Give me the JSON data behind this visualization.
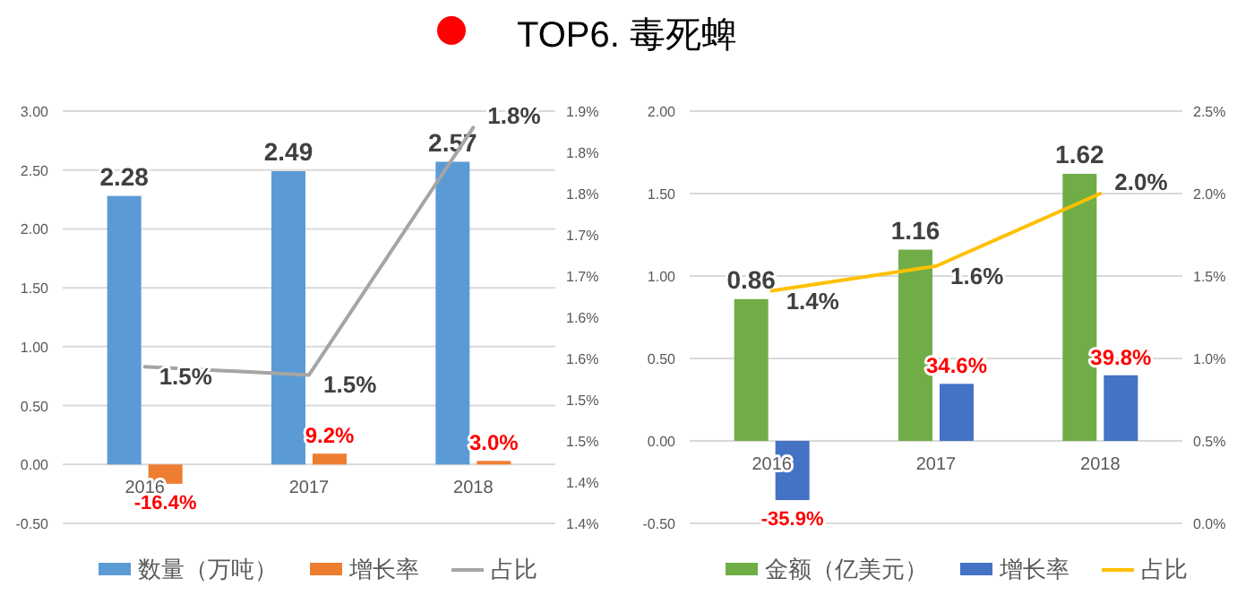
{
  "chart_data": [
    {
      "type": "bar",
      "title": "TOP6. 毒死蜱",
      "categories": [
        "2016",
        "2017",
        "2018"
      ],
      "series": [
        {
          "name": "数量（万吨）",
          "type": "bar",
          "color": "#5b9bd5",
          "values": [
            2.28,
            2.49,
            2.57
          ],
          "value_labels": [
            "2.28",
            "2.49",
            "2.57"
          ]
        },
        {
          "name": "增长率",
          "type": "bar",
          "color": "#ed7d31",
          "values": [
            -0.164,
            0.092,
            0.03
          ],
          "value_labels": [
            "-16.4%",
            "9.2%",
            "3.0%"
          ]
        },
        {
          "name": "占比",
          "type": "line",
          "axis": "y2",
          "color": "#a5a5a5",
          "values": [
            1.54,
            1.53,
            1.83
          ],
          "value_labels": [
            "1.5%",
            "1.5%",
            "1.8%"
          ]
        }
      ],
      "ylim": [
        -0.5,
        3
      ],
      "yticks": [
        {
          "value": -0.5,
          "label": "-0.50"
        },
        {
          "value": 0,
          "label": "0.00"
        },
        {
          "value": 0.5,
          "label": "0.50"
        },
        {
          "value": 1,
          "label": "1.00"
        },
        {
          "value": 1.5,
          "label": "1.50"
        },
        {
          "value": 2,
          "label": "2.00"
        },
        {
          "value": 2.5,
          "label": "2.50"
        },
        {
          "value": 3,
          "label": "3.00"
        }
      ],
      "y2lim": [
        1.35,
        1.85
      ],
      "y2ticks": [
        {
          "value": 1.35,
          "label": "1.4%"
        },
        {
          "value": 1.4,
          "label": "1.4%"
        },
        {
          "value": 1.45,
          "label": "1.5%"
        },
        {
          "value": 1.5,
          "label": "1.5%"
        },
        {
          "value": 1.55,
          "label": "1.6%"
        },
        {
          "value": 1.6,
          "label": "1.6%"
        },
        {
          "value": 1.65,
          "label": "1.7%"
        },
        {
          "value": 1.7,
          "label": "1.7%"
        },
        {
          "value": 1.75,
          "label": "1.8%"
        },
        {
          "value": 1.8,
          "label": "1.8%"
        },
        {
          "value": 1.85,
          "label": "1.9%"
        }
      ],
      "grid": "y",
      "legend": "bottom"
    },
    {
      "type": "bar",
      "categories": [
        "2016",
        "2017",
        "2018"
      ],
      "series": [
        {
          "name": "金额（亿美元）",
          "type": "bar",
          "color": "#70ad47",
          "values": [
            0.86,
            1.16,
            1.62
          ],
          "value_labels": [
            "0.86",
            "1.16",
            "1.62"
          ]
        },
        {
          "name": "增长率",
          "type": "bar",
          "color": "#4472c4",
          "values": [
            -0.359,
            0.346,
            0.398
          ],
          "value_labels": [
            "-35.9%",
            "34.6%",
            "39.8%"
          ]
        },
        {
          "name": "占比",
          "type": "line",
          "axis": "y2",
          "color": "#ffc000",
          "values": [
            1.41,
            1.56,
            2.0
          ],
          "value_labels": [
            "1.4%",
            "1.6%",
            "2.0%"
          ]
        }
      ],
      "ylim": [
        -0.5,
        2
      ],
      "yticks": [
        {
          "value": -0.5,
          "label": "-0.50"
        },
        {
          "value": 0,
          "label": "0.00"
        },
        {
          "value": 0.5,
          "label": "0.50"
        },
        {
          "value": 1,
          "label": "1.00"
        },
        {
          "value": 1.5,
          "label": "1.50"
        },
        {
          "value": 2,
          "label": "2.00"
        }
      ],
      "y2lim": [
        0,
        2.5
      ],
      "y2ticks": [
        {
          "value": 0,
          "label": "0.0%"
        },
        {
          "value": 0.5,
          "label": "0.5%"
        },
        {
          "value": 1,
          "label": "1.0%"
        },
        {
          "value": 1.5,
          "label": "1.5%"
        },
        {
          "value": 2,
          "label": "2.0%"
        },
        {
          "value": 2.5,
          "label": "2.5%"
        }
      ],
      "grid": "y",
      "legend": "bottom"
    }
  ]
}
